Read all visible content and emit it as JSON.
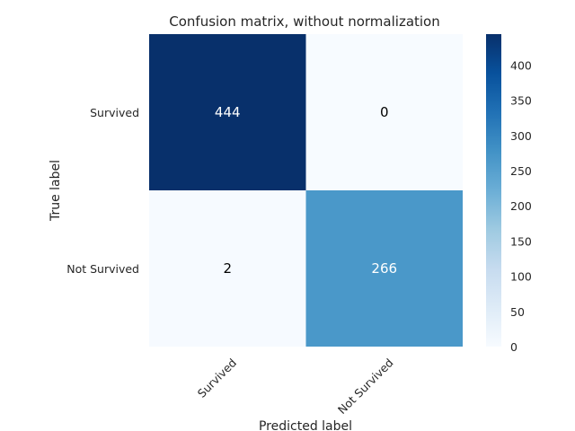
{
  "chart_data": {
    "type": "heatmap",
    "title": "Confusion matrix, without normalization",
    "xlabel": "Predicted label",
    "ylabel": "True label",
    "x_categories": [
      "Survived",
      "Not Survived"
    ],
    "y_categories": [
      "Survived",
      "Not Survived"
    ],
    "values": [
      [
        444,
        0
      ],
      [
        2,
        266
      ]
    ],
    "colormap": "Blues",
    "colorbar": {
      "ticks": [
        0,
        50,
        100,
        150,
        200,
        250,
        300,
        350,
        400
      ],
      "min": 0,
      "max": 444
    },
    "colors": {
      "low": "#f7fbff",
      "high": "#08306b",
      "text_dark": "#000000",
      "text_light": "#ffffff"
    }
  }
}
